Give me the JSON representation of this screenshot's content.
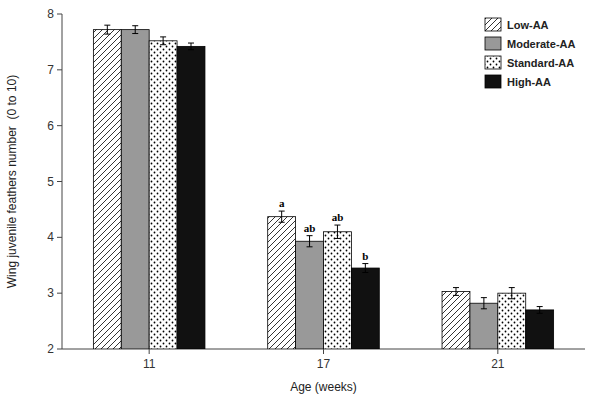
{
  "chart_data": {
    "type": "bar",
    "xlabel": "Age (weeks)",
    "ylabel": "Wing juvenile feathers number  (0 to 10)",
    "categories": [
      "11",
      "17",
      "21"
    ],
    "series": [
      {
        "name": "Low-AA",
        "color": "white",
        "values": [
          7.72,
          4.37,
          3.03
        ],
        "errors": [
          0.08,
          0.1,
          0.07
        ],
        "letters": [
          null,
          "a",
          null
        ]
      },
      {
        "name": "Moderate-AA",
        "color": "#999999",
        "values": [
          7.72,
          3.93,
          2.82
        ],
        "errors": [
          0.07,
          0.1,
          0.1
        ],
        "letters": [
          null,
          "ab",
          null
        ]
      },
      {
        "name": "Standard-AA",
        "color": "white",
        "values": [
          7.52,
          4.1,
          3.0
        ],
        "errors": [
          0.07,
          0.12,
          0.1
        ],
        "letters": [
          null,
          "ab",
          null
        ]
      },
      {
        "name": "High-AA",
        "color": "#111111",
        "values": [
          7.42,
          3.45,
          2.7
        ],
        "errors": [
          0.06,
          0.08,
          0.06
        ],
        "letters": [
          null,
          "b",
          null
        ]
      }
    ],
    "ylim": [
      2,
      8
    ],
    "yticks": [
      2,
      3,
      4,
      5,
      6,
      7,
      8
    ],
    "grid": false,
    "legend": "upper right"
  }
}
